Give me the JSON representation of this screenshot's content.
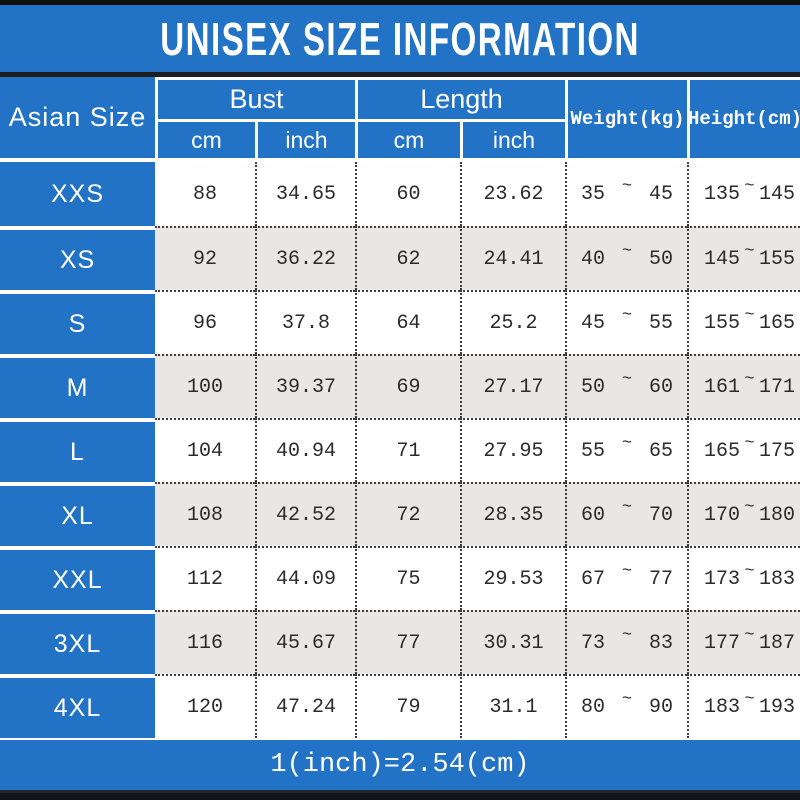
{
  "title_bar": {
    "title": "UNISEX SIZE INFORMATION"
  },
  "table": {
    "header": {
      "asian_size": "Asian Size",
      "bust": {
        "label": "Bust",
        "sub_cm": "cm",
        "sub_inch": "inch"
      },
      "length": {
        "label": "Length",
        "sub_cm": "cm",
        "sub_inch": "inch"
      },
      "weight": "Weight(kg)",
      "height": "Height(cm)"
    },
    "rows": [
      {
        "size": "XXS",
        "bust_cm": "88",
        "bust_inch": "34.65",
        "length_cm": "60",
        "length_inch": "23.62",
        "weight_min": "35",
        "weight_max": "45",
        "height_min": "135",
        "height_max": "145"
      },
      {
        "size": "XS",
        "bust_cm": "92",
        "bust_inch": "36.22",
        "length_cm": "62",
        "length_inch": "24.41",
        "weight_min": "40",
        "weight_max": "50",
        "height_min": "145",
        "height_max": "155"
      },
      {
        "size": "S",
        "bust_cm": "96",
        "bust_inch": "37.8",
        "length_cm": "64",
        "length_inch": "25.2",
        "weight_min": "45",
        "weight_max": "55",
        "height_min": "155",
        "height_max": "165"
      },
      {
        "size": "M",
        "bust_cm": "100",
        "bust_inch": "39.37",
        "length_cm": "69",
        "length_inch": "27.17",
        "weight_min": "50",
        "weight_max": "60",
        "height_min": "161",
        "height_max": "171"
      },
      {
        "size": "L",
        "bust_cm": "104",
        "bust_inch": "40.94",
        "length_cm": "71",
        "length_inch": "27.95",
        "weight_min": "55",
        "weight_max": "65",
        "height_min": "165",
        "height_max": "175"
      },
      {
        "size": "XL",
        "bust_cm": "108",
        "bust_inch": "42.52",
        "length_cm": "72",
        "length_inch": "28.35",
        "weight_min": "60",
        "weight_max": "70",
        "height_min": "170",
        "height_max": "180"
      },
      {
        "size": "XXL",
        "bust_cm": "112",
        "bust_inch": "44.09",
        "length_cm": "75",
        "length_inch": "29.53",
        "weight_min": "67",
        "weight_max": "77",
        "height_min": "173",
        "height_max": "183"
      },
      {
        "size": "3XL",
        "bust_cm": "116",
        "bust_inch": "45.67",
        "length_cm": "77",
        "length_inch": "30.31",
        "weight_min": "73",
        "weight_max": "83",
        "height_min": "177",
        "height_max": "187"
      },
      {
        "size": "4XL",
        "bust_cm": "120",
        "bust_inch": "47.24",
        "length_cm": "79",
        "length_inch": "31.1",
        "weight_min": "80",
        "weight_max": "90",
        "height_min": "183",
        "height_max": "193"
      }
    ]
  },
  "symbols": {
    "tilde": "~"
  },
  "footer": {
    "note": "1(inch)=2.54(cm)"
  },
  "colors": {
    "accent_blue": "#2273c5",
    "row_alt_gray": "#e8e7e5",
    "dotted_line": "#3d3d3d",
    "bar_black": "#0f0f0f",
    "text_dark": "#2b2b2b",
    "text_white": "#ffffff"
  }
}
